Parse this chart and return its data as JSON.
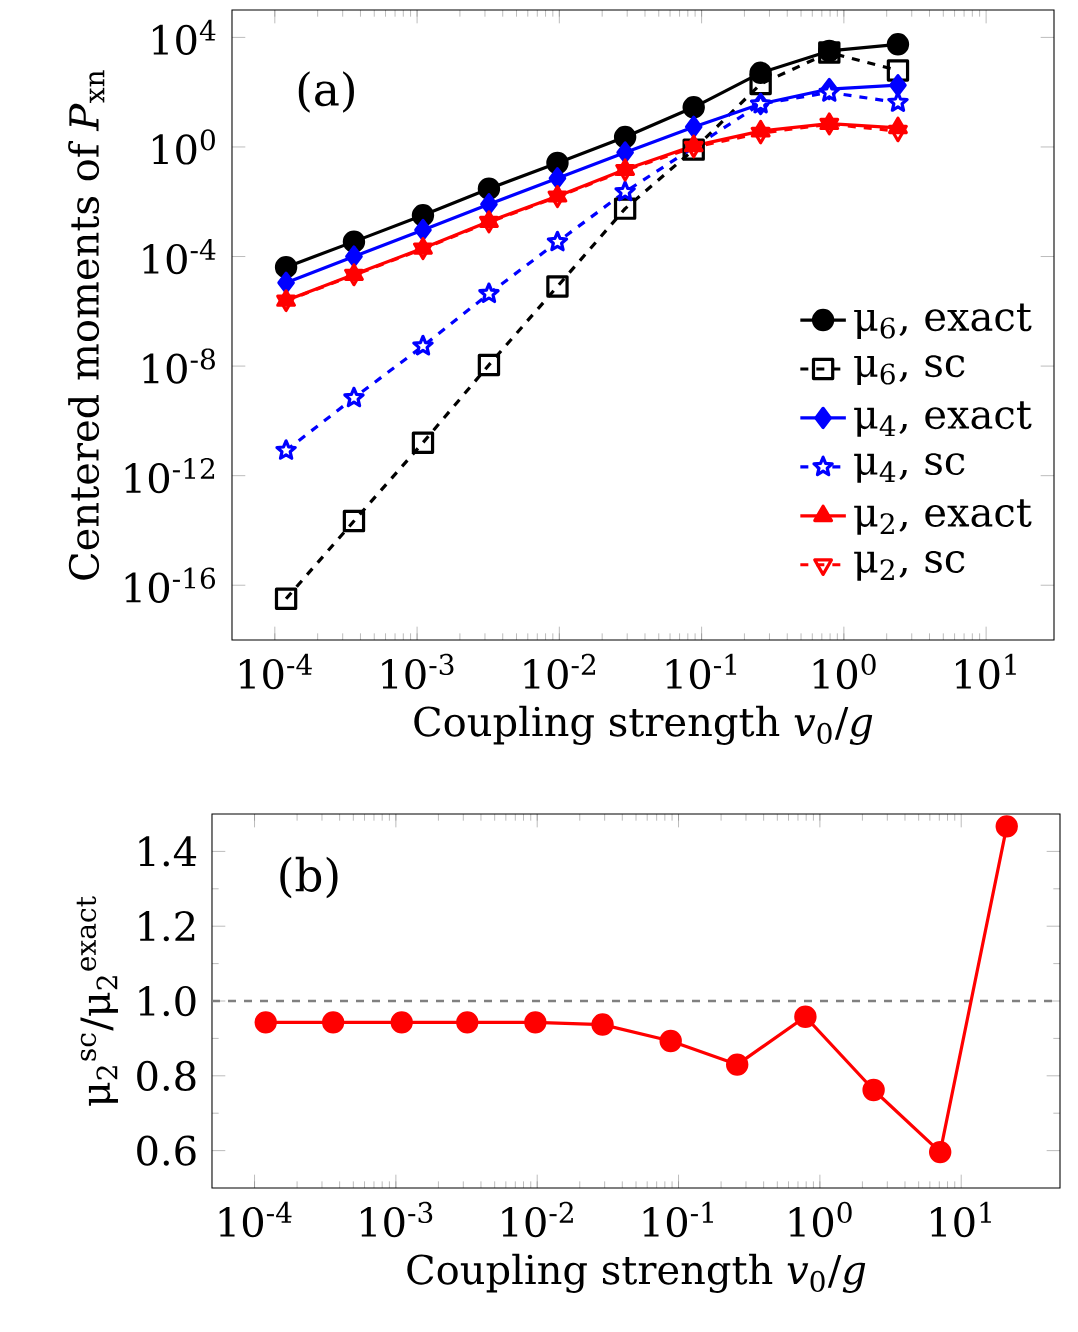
{
  "chart_data": [
    {
      "type": "line",
      "xlabel": "Coupling strength *v*$_{0}$/*g*",
      "ylabel": "Centered moments of *P*$_{xn}$",
      "annotations": [
        "(a)"
      ],
      "log": "xy",
      "xlim": [
        5e-05,
        30
      ],
      "ylim": [
        1e-18,
        100000
      ],
      "xticks": [
        {
          "value": 0.0001,
          "label": "10$^{-4}$"
        },
        {
          "value": 0.001,
          "label": "10$^{-3}$"
        },
        {
          "value": 0.01,
          "label": "10$^{-2}$"
        },
        {
          "value": 0.1,
          "label": "10$^{-1}$"
        },
        {
          "value": 1,
          "label": "10$^{0}$"
        },
        {
          "value": 10,
          "label": "10$^{1}$"
        }
      ],
      "yticks": [
        {
          "value": 1e-16,
          "label": "10$^{-16}$"
        },
        {
          "value": 1e-12,
          "label": "10$^{-12}$"
        },
        {
          "value": 1e-08,
          "label": "10$^{-8}$"
        },
        {
          "value": 0.0001,
          "label": "10$^{-4}$"
        },
        {
          "value": 1,
          "label": "10$^{0}$"
        },
        {
          "value": 10000,
          "label": "10$^{4}$"
        }
      ],
      "x": [
        0.00012,
        0.00036,
        0.0011,
        0.0032,
        0.0097,
        0.029,
        0.088,
        0.26,
        0.79,
        2.4
      ],
      "legend": "bottom right",
      "series": [
        {
          "name": "μ$_{6}$, exact",
          "color": "#000000",
          "marker": "circle",
          "line_style": "solid",
          "values": [
            4.1e-05,
            0.00035,
            0.0032,
            0.03,
            0.26,
            2.3,
            28,
            510,
            3200,
            5600
          ]
        },
        {
          "name": "μ$_{6}$, sc",
          "color": "#000000",
          "marker": "square",
          "line_style": "dashed",
          "values": [
            3.2e-17,
            2.2e-14,
            1.6e-11,
            1.1e-08,
            8.1e-06,
            0.0056,
            0.8,
            200,
            2800,
            620
          ]
        },
        {
          "name": "μ$_{4}$, exact",
          "color": "#0000ff",
          "marker": "diamond",
          "line_style": "solid",
          "values": [
            1.1e-05,
            0.0001,
            0.00093,
            0.0081,
            0.072,
            0.63,
            5.4,
            37,
            130,
            180
          ]
        },
        {
          "name": "μ$_{4}$, sc",
          "color": "#0000ff",
          "marker": "star",
          "line_style": "dashed",
          "values": [
            8.3e-12,
            6.9e-10,
            5.4e-08,
            4.4e-06,
            0.00034,
            0.023,
            null,
            37,
            98,
            42
          ]
        },
        {
          "name": "μ$_{2}$, exact",
          "color": "#ff0000",
          "marker": "triangle",
          "line_style": "solid",
          "values": [
            2.5e-06,
            2.2e-05,
            0.0002,
            0.0019,
            0.016,
            0.15,
            1.1,
            3.8,
            7.1,
            5.0
          ]
        },
        {
          "name": "μ$_{2}$, sc",
          "color": "#ff0000",
          "marker": "triangle",
          "line_style": "dashed",
          "values": [
            2.4e-06,
            2.1e-05,
            0.00019,
            0.0018,
            0.015,
            0.14,
            0.98,
            3.2,
            6.8,
            3.8
          ]
        }
      ]
    },
    {
      "type": "line",
      "xlabel": "Coupling strength *v*$_{0}$/*g*",
      "ylabel": "μ$_{2}$$^{sc}$/μ$_{2}$$^{exact}$",
      "annotations": [
        "(b)"
      ],
      "log": "x",
      "xlim": [
        5e-05,
        50
      ],
      "ylim": [
        0.5,
        1.5
      ],
      "xticks": [
        {
          "value": 0.0001,
          "label": "10$^{-4}$"
        },
        {
          "value": 0.001,
          "label": "10$^{-3}$"
        },
        {
          "value": 0.01,
          "label": "10$^{-2}$"
        },
        {
          "value": 0.1,
          "label": "10$^{-1}$"
        },
        {
          "value": 1,
          "label": "10$^{0}$"
        },
        {
          "value": 10,
          "label": "10$^{1}$"
        }
      ],
      "yticks": [
        0.6,
        0.8,
        {
          "value": 1,
          "label": "1.0"
        },
        1.2,
        1.4
      ],
      "x": [
        0.00012,
        0.00036,
        0.0011,
        0.0032,
        0.0097,
        0.029,
        0.088,
        0.26,
        0.79,
        2.4,
        7.1,
        21
      ],
      "ref_lines": [
        {
          "axis": "y",
          "value": 1.0,
          "color": "#808080",
          "line_style": "dashed"
        }
      ],
      "series": [
        {
          "color": "#ff0000",
          "marker": "circle",
          "line_style": "solid",
          "values": [
            0.943,
            0.943,
            0.943,
            0.943,
            0.943,
            0.937,
            0.893,
            0.83,
            0.958,
            0.762,
            0.596,
            1.467
          ]
        }
      ]
    }
  ]
}
